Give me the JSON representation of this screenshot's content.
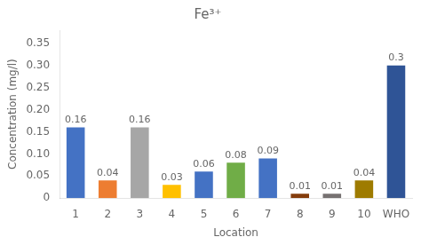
{
  "chart_data": {
    "type": "bar",
    "title": "Fe³⁺",
    "xlabel": "Location",
    "ylabel": "Concentration (mg/l)",
    "categories": [
      "1",
      "2",
      "3",
      "4",
      "5",
      "6",
      "7",
      "8",
      "9",
      "10",
      "WHO"
    ],
    "values": [
      0.16,
      0.04,
      0.16,
      0.03,
      0.06,
      0.08,
      0.09,
      0.01,
      0.01,
      0.04,
      0.3
    ],
    "colors": [
      "#4472c4",
      "#ed7d31",
      "#a6a6a6",
      "#ffc000",
      "#4472c4",
      "#70ad47",
      "#4472c4",
      "#843c0c",
      "#767171",
      "#9e7b00",
      "#2f5496"
    ],
    "ylim": [
      0,
      0.38
    ],
    "yticks": [
      0,
      0.05,
      {
        "value": 0.1,
        "label": "0.10"
      },
      0.15,
      {
        "value": 0.2,
        "label": "0.20"
      },
      0.25,
      {
        "value": 0.3,
        "label": "0.30"
      },
      0.35
    ],
    "grid": false,
    "data_labels": true
  }
}
